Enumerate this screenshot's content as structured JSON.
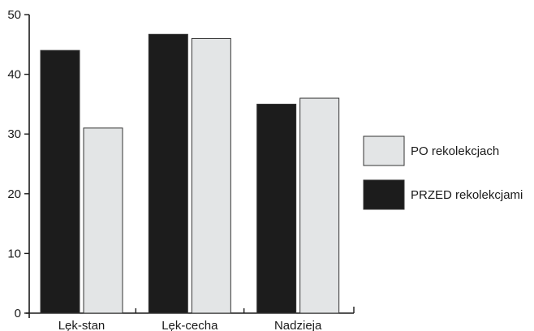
{
  "chart_data": {
    "type": "bar",
    "title": "",
    "xlabel": "",
    "ylabel": "",
    "ylim": [
      0,
      50
    ],
    "yticks": [
      0,
      10,
      20,
      30,
      40,
      50
    ],
    "grid": false,
    "legend_position": "right",
    "categories": [
      "Lęk-stan",
      "Lęk-cecha",
      "Nadzieja"
    ],
    "series": [
      {
        "name": "PRZED rekolekcjami",
        "values": [
          44,
          46.7,
          35
        ],
        "color": "#1c1c1c"
      },
      {
        "name": "PO rekolekcjach",
        "values": [
          31,
          46,
          36
        ],
        "color": "#e3e5e6"
      }
    ],
    "legend_order": [
      1,
      0
    ]
  }
}
